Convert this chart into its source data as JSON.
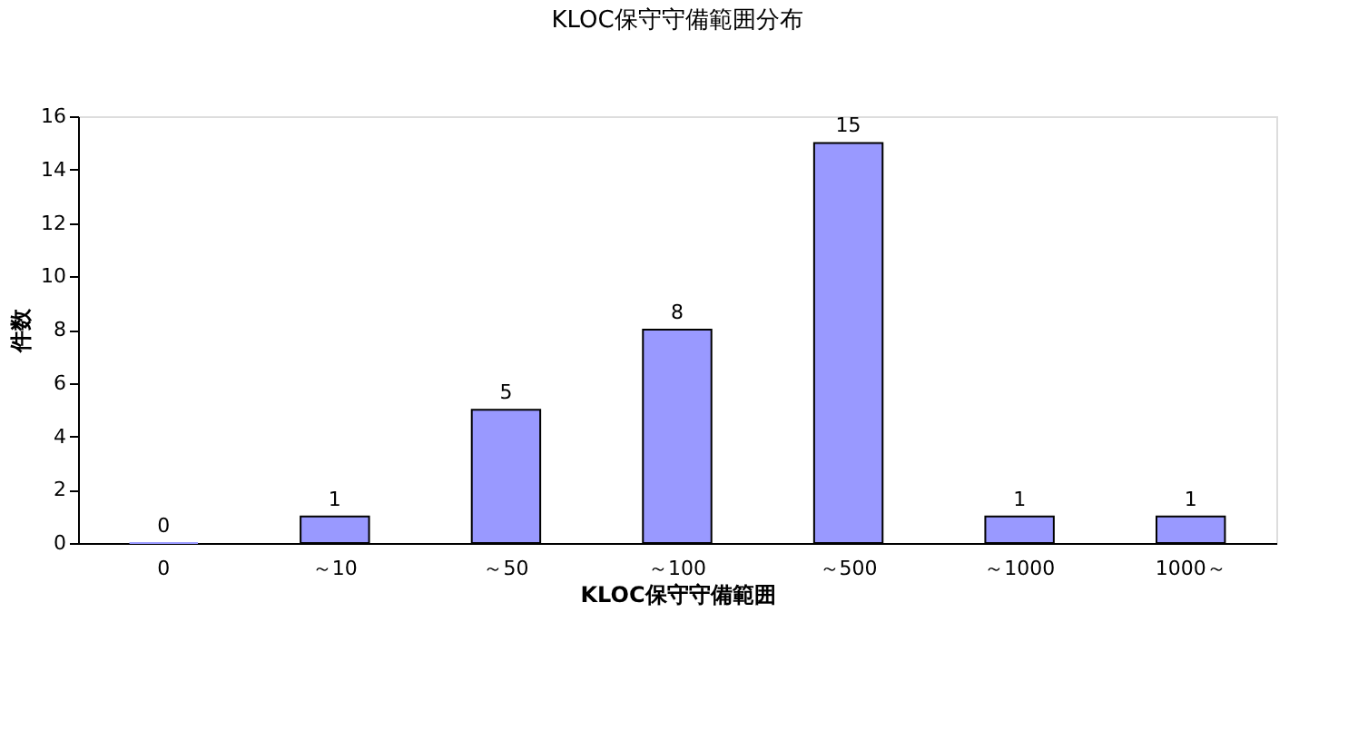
{
  "chart_data": {
    "type": "bar",
    "title": "KLOC保守守備範囲分布",
    "xlabel": "KLOC保守守備範囲",
    "ylabel": "件数",
    "categories": [
      "0",
      "～10",
      "～50",
      "～100",
      "～500",
      "～1000",
      "1000～"
    ],
    "values": [
      0,
      1,
      5,
      8,
      15,
      1,
      1
    ],
    "color": "#9999ff",
    "ylim": [
      0,
      16
    ],
    "yticks": [
      0,
      2,
      4,
      6,
      8,
      10,
      12,
      14,
      16
    ],
    "grid": false,
    "data_labels": true
  }
}
